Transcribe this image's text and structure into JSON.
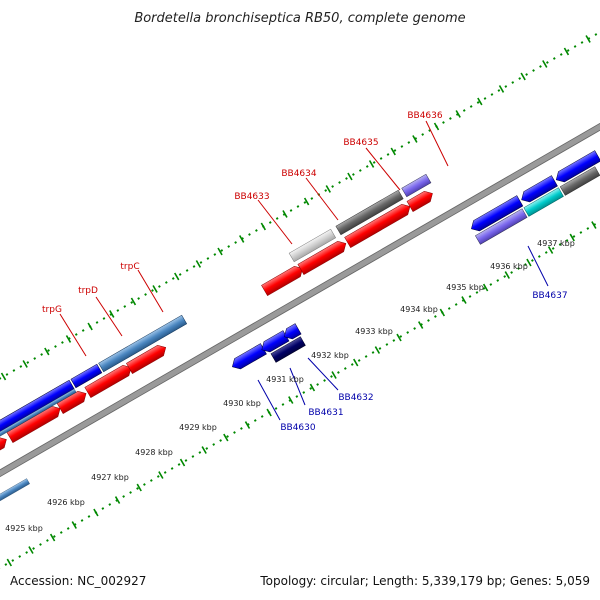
{
  "title": "Bordetella bronchiseptica RB50, complete genome",
  "accession": "Accession: NC_002927",
  "summary": "Topology: circular; Length: 5,339,179 bp; Genes: 5,059",
  "kbp_ticks": [
    "4925 kbp",
    "4926 kbp",
    "4927 kbp",
    "4928 kbp",
    "4929 kbp",
    "4930 kbp",
    "4931 kbp",
    "4932 kbp",
    "4933 kbp",
    "4934 kbp",
    "4935 kbp",
    "4936 kbp",
    "4937 kbp"
  ],
  "gene_labels": {
    "trpG": "trpG",
    "trpD": "trpD",
    "trpC": "trpC",
    "BB4633": "BB4633",
    "BB4634": "BB4634",
    "BB4635": "BB4635",
    "BB4636": "BB4636",
    "BB4630": "BB4630",
    "BB4631": "BB4631",
    "BB4632": "BB4632",
    "BB4637": "BB4637"
  },
  "colors": {
    "backbone": "#999999",
    "forward_gene": "#ff0000",
    "reverse_gene": "#0000ff",
    "label_forward": "#cc0000",
    "label_reverse": "#0000aa",
    "dots": "#008800"
  }
}
